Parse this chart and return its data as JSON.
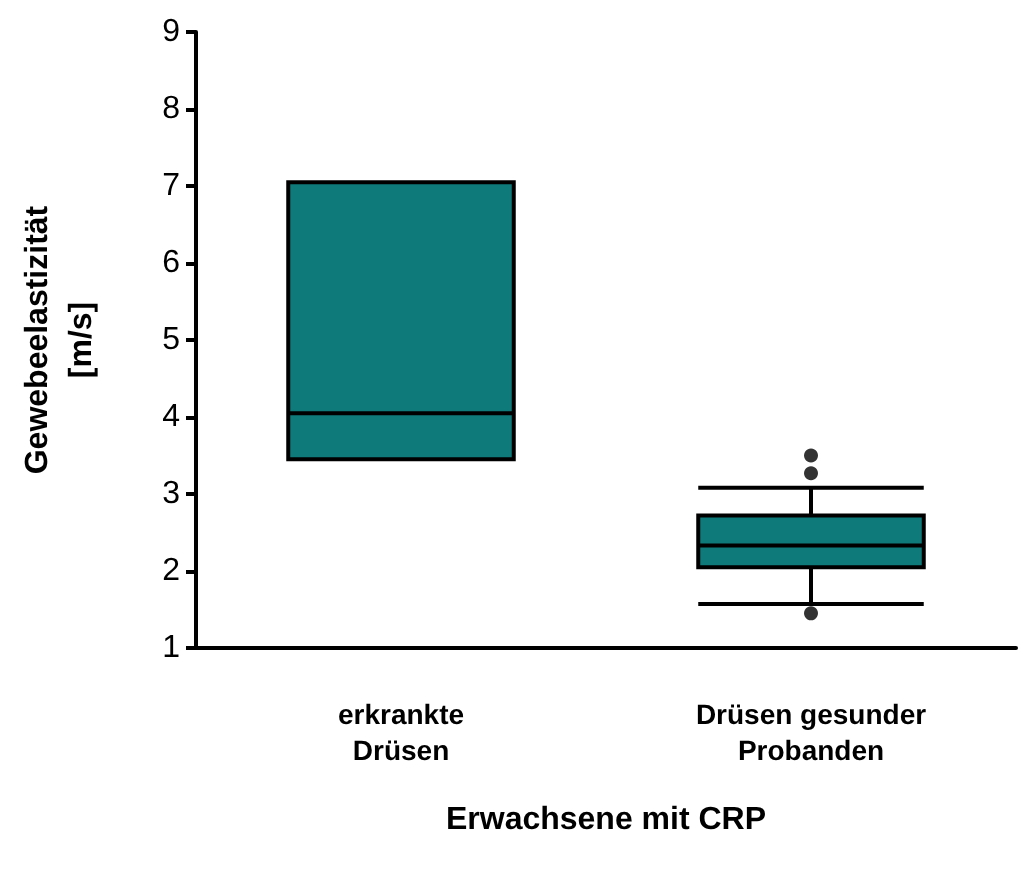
{
  "chart_data": {
    "type": "box",
    "xlabel": "Erwachsene mit CRP",
    "ylabel": "Gewebeelastizität\n[m/s]",
    "categories": [
      "erkrankte\nDrüsen",
      "Drüsen gesunder\nProbanden"
    ],
    "series": [
      {
        "color": "#0e7a7a",
        "boxes": [
          {
            "low": 3.45,
            "q1": 3.45,
            "median": 4.05,
            "q3": 7.05,
            "high": 7.05
          },
          {
            "low": 1.57,
            "q1": 2.05,
            "median": 2.33,
            "q3": 2.72,
            "high": 3.08,
            "outliers": [
              1.45,
              3.27,
              3.5
            ]
          }
        ]
      }
    ],
    "ylim": [
      1,
      9
    ],
    "yticks": [
      1,
      2,
      3,
      4,
      5,
      6,
      7,
      8,
      9
    ],
    "grid": false
  }
}
